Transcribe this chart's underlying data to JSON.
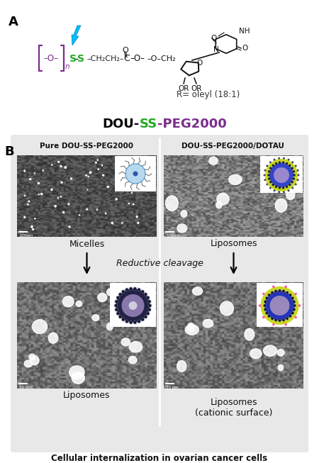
{
  "fig_width": 4.57,
  "fig_height": 6.53,
  "background_color": "#ffffff",
  "panel_A_label": "A",
  "panel_B_label": "B",
  "color_DOU": "#000000",
  "color_SS": "#22aa22",
  "color_PEG": "#7B2D8B",
  "color_PEG_chain": "#7B2D8B",
  "R_label": "R= oleyl (18:1)",
  "reductive_label": "Reductive cleavage",
  "bottom_label": "Cellular internalization in ovarian cancer cells",
  "box_bg": "#e8e8e8",
  "col1_title": "Pure DOU-SS-PEG2000",
  "col2_title": "DOU-SS-PEG2000/DOTAU",
  "label_micelles": "Micelles",
  "label_lipo1": "Liposomes",
  "label_lipo2": "Liposomes",
  "label_lipo3": "Liposomes\n(cationic surface)",
  "lightning_color": "#00BFFF",
  "lightning_color2": "#007FBF"
}
